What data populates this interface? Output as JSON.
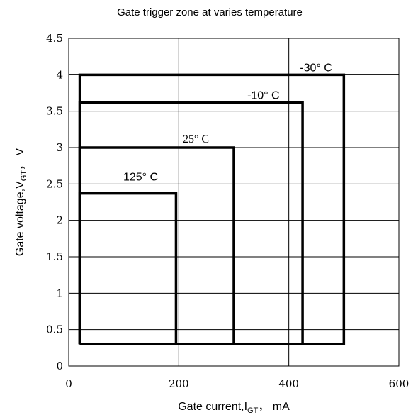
{
  "chart_data": {
    "type": "line",
    "title": "Gate trigger zone at varies temperature",
    "xlabel": {
      "main": "Gate current,I",
      "sub": "GT",
      "suffix": "，  mA"
    },
    "ylabel": {
      "main": "Gate voltage,V",
      "sub": "GT",
      "suffix": "，  V"
    },
    "xlim": [
      0,
      600
    ],
    "ylim": [
      0,
      4.5
    ],
    "xticks": [
      0,
      200,
      400,
      600
    ],
    "xtick_labels": [
      "0",
      "200",
      "400",
      "600"
    ],
    "yticks": [
      0,
      0.5,
      1,
      1.5,
      2,
      2.5,
      3,
      3.5,
      4,
      4.5
    ],
    "ytick_labels": [
      "0",
      "0.5",
      "1",
      "1.5",
      "2",
      "2.5",
      "3",
      "3.5",
      "4",
      "4.5"
    ],
    "grid": true,
    "series": [
      {
        "name": "-30° C",
        "label": "-30°  C",
        "x": [
          20,
          500,
          500,
          20,
          20
        ],
        "y": [
          0.3,
          0.3,
          4.0,
          4.0,
          0.3
        ]
      },
      {
        "name": "-10° C",
        "label": "-10°  C",
        "x": [
          20,
          425,
          425,
          20,
          20
        ],
        "y": [
          0.3,
          0.3,
          3.62,
          3.62,
          0.3
        ]
      },
      {
        "name": "25° C",
        "label": "25°  C",
        "x": [
          20,
          300,
          300,
          20,
          20
        ],
        "y": [
          0.3,
          0.3,
          3.0,
          3.0,
          0.3
        ]
      },
      {
        "name": "125° C",
        "label": "125°  C",
        "x": [
          20,
          195,
          195,
          20,
          20
        ],
        "y": [
          0.3,
          0.3,
          2.37,
          2.37,
          0.3
        ]
      }
    ]
  }
}
